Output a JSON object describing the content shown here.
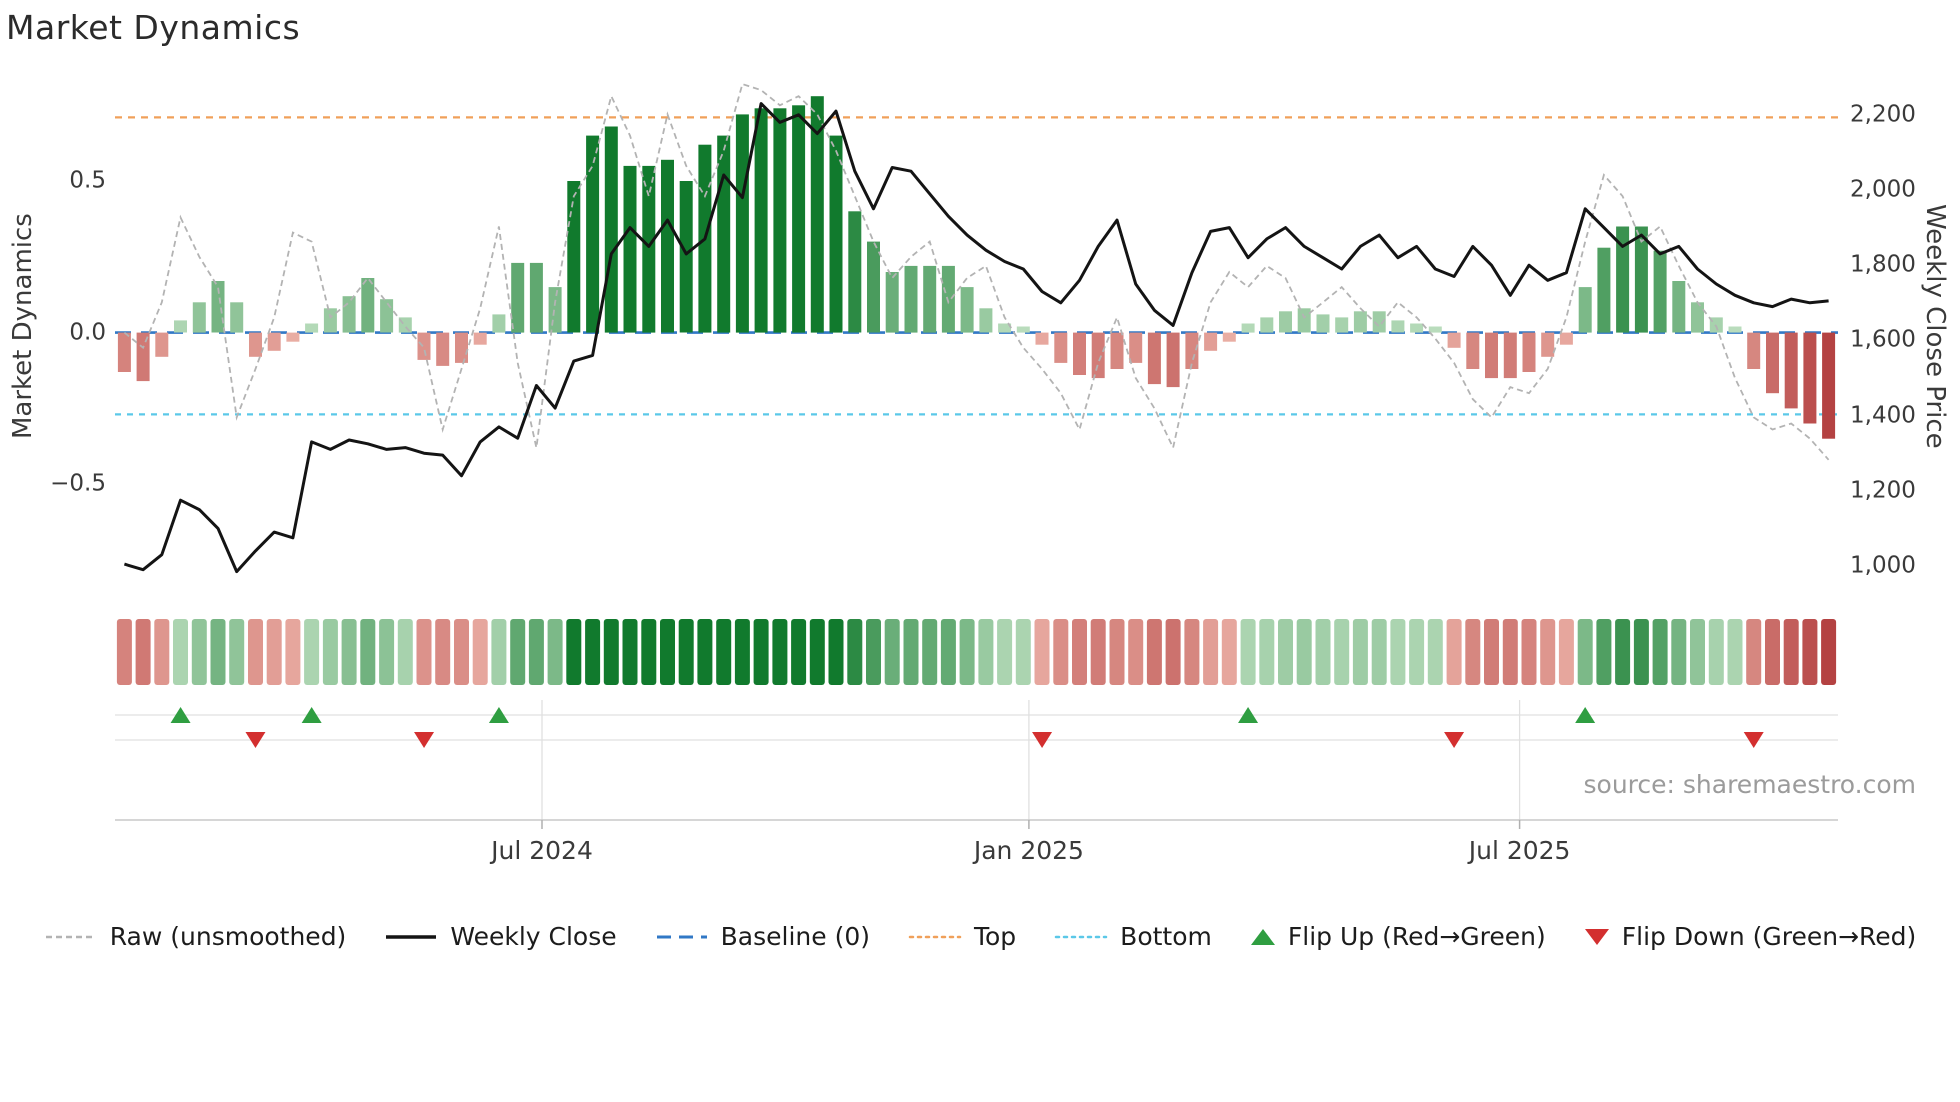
{
  "title": "Market Dynamics",
  "source_text": "source: sharemaestro.com",
  "axes": {
    "left_label": "Market Dynamics",
    "right_label": "Weekly Close Price",
    "left_ticks": [
      {
        "label": "0.5",
        "value": 0.5
      },
      {
        "label": "0.0",
        "value": 0.0
      },
      {
        "label": "−0.5",
        "value": -0.5
      }
    ],
    "right_ticks": [
      {
        "label": "2,200",
        "value": 2200
      },
      {
        "label": "2,000",
        "value": 2000
      },
      {
        "label": "1,800",
        "value": 1800
      },
      {
        "label": "1,600",
        "value": 1600
      },
      {
        "label": "1,400",
        "value": 1400
      },
      {
        "label": "1,200",
        "value": 1200
      },
      {
        "label": "1,000",
        "value": 1000
      }
    ],
    "x_ticks": [
      {
        "label": "Jul 2024",
        "index": 22.3
      },
      {
        "label": "Jan 2025",
        "index": 48.3
      },
      {
        "label": "Jul 2025",
        "index": 74.5
      }
    ]
  },
  "colors": {
    "weekly_close": "#141414",
    "raw": "#b3b3b3",
    "baseline": "#3178c6",
    "top": "#f0a05a",
    "bottom": "#5bc8e8",
    "flip_up": "#2f9e41",
    "flip_down": "#d32f2f",
    "green_pale": "#cde8cd",
    "green_dark": "#117a2d",
    "red_pale": "#f5c4b8",
    "red_dark": "#a21d21",
    "grid": "#e0e0e0",
    "spine": "#c8c8c8",
    "tick": "#b0b0b0"
  },
  "legend": {
    "items": [
      {
        "label": "Raw (unsmoothed)"
      },
      {
        "label": "Weekly Close"
      },
      {
        "label": "Baseline (0)"
      },
      {
        "label": "Top"
      },
      {
        "label": "Bottom"
      },
      {
        "label": "Flip Up (Red→Green)"
      },
      {
        "label": "Flip Down (Green→Red)"
      }
    ]
  },
  "chart_data": {
    "type": "bar",
    "title": "Market Dynamics",
    "n_points": 92,
    "frequency": "weekly",
    "left_axis": {
      "label": "Market Dynamics",
      "ylim": [
        -0.8,
        0.84
      ]
    },
    "right_axis": {
      "label": "Weekly Close Price",
      "ylim": [
        976,
        2298
      ]
    },
    "reference_lines": {
      "baseline": 0,
      "top": 0.71,
      "bottom": -0.27
    },
    "x_tick_labels": [
      "Jul 2024",
      "Jan 2025",
      "Jul 2025"
    ],
    "series": [
      {
        "name": "Oscillator (smoothed bars)",
        "kind": "bar",
        "axis": "left",
        "values": [
          -0.13,
          -0.16,
          -0.08,
          0.04,
          0.1,
          0.17,
          0.1,
          -0.08,
          -0.06,
          -0.03,
          0.03,
          0.08,
          0.12,
          0.18,
          0.11,
          0.05,
          -0.09,
          -0.11,
          -0.1,
          -0.04,
          0.06,
          0.23,
          0.23,
          0.15,
          0.5,
          0.65,
          0.68,
          0.55,
          0.55,
          0.57,
          0.5,
          0.62,
          0.65,
          0.72,
          0.74,
          0.74,
          0.75,
          0.78,
          0.65,
          0.4,
          0.3,
          0.2,
          0.22,
          0.22,
          0.22,
          0.15,
          0.08,
          0.03,
          0.02,
          -0.04,
          -0.1,
          -0.14,
          -0.15,
          -0.12,
          -0.1,
          -0.17,
          -0.18,
          -0.12,
          -0.06,
          -0.03,
          0.03,
          0.05,
          0.07,
          0.08,
          0.06,
          0.05,
          0.07,
          0.07,
          0.04,
          0.03,
          0.02,
          -0.05,
          -0.12,
          -0.15,
          -0.15,
          -0.13,
          -0.08,
          -0.04,
          0.15,
          0.28,
          0.35,
          0.35,
          0.27,
          0.17,
          0.1,
          0.05,
          0.02,
          -0.12,
          -0.2,
          -0.25,
          -0.3,
          -0.35
        ]
      },
      {
        "name": "Raw (unsmoothed)",
        "kind": "line",
        "axis": "left",
        "values": [
          0.0,
          -0.05,
          0.1,
          0.38,
          0.25,
          0.15,
          -0.28,
          -0.12,
          0.05,
          0.33,
          0.3,
          0.05,
          0.1,
          0.18,
          0.1,
          0.02,
          -0.05,
          -0.32,
          -0.12,
          0.08,
          0.35,
          -0.1,
          -0.38,
          0.1,
          0.45,
          0.55,
          0.78,
          0.65,
          0.45,
          0.72,
          0.55,
          0.45,
          0.6,
          0.82,
          0.8,
          0.75,
          0.78,
          0.72,
          0.6,
          0.45,
          0.3,
          0.18,
          0.25,
          0.3,
          0.1,
          0.18,
          0.22,
          0.05,
          -0.05,
          -0.12,
          -0.2,
          -0.32,
          -0.1,
          0.05,
          -0.15,
          -0.25,
          -0.38,
          -0.1,
          0.1,
          0.2,
          0.15,
          0.22,
          0.18,
          0.05,
          0.1,
          0.15,
          0.08,
          0.02,
          0.1,
          0.05,
          -0.02,
          -0.1,
          -0.22,
          -0.28,
          -0.18,
          -0.2,
          -0.12,
          0.05,
          0.3,
          0.52,
          0.45,
          0.3,
          0.35,
          0.22,
          0.1,
          0.02,
          -0.15,
          -0.28,
          -0.32,
          -0.3,
          -0.35,
          -0.42
        ]
      },
      {
        "name": "Weekly Close",
        "kind": "line",
        "axis": "right",
        "values": [
          1005,
          990,
          1030,
          1175,
          1150,
          1100,
          985,
          1040,
          1090,
          1075,
          1330,
          1310,
          1335,
          1325,
          1310,
          1315,
          1300,
          1295,
          1240,
          1330,
          1370,
          1340,
          1480,
          1420,
          1545,
          1560,
          1830,
          1900,
          1850,
          1920,
          1830,
          1870,
          2040,
          1980,
          2230,
          2180,
          2200,
          2150,
          2210,
          2050,
          1950,
          2060,
          2050,
          1990,
          1930,
          1880,
          1840,
          1810,
          1790,
          1730,
          1700,
          1760,
          1850,
          1920,
          1750,
          1680,
          1640,
          1780,
          1890,
          1900,
          1820,
          1870,
          1900,
          1850,
          1820,
          1790,
          1850,
          1880,
          1820,
          1850,
          1790,
          1770,
          1850,
          1800,
          1720,
          1800,
          1760,
          1780,
          1950,
          1900,
          1850,
          1880,
          1830,
          1850,
          1790,
          1750,
          1720,
          1700,
          1690,
          1710,
          1700,
          1705
        ]
      }
    ],
    "heatmap": "same values as oscillator bars, rendered as color strip",
    "flip_up_indices": [
      3,
      10,
      20,
      60,
      78
    ],
    "flip_down_indices": [
      7,
      16,
      49,
      71,
      87
    ]
  }
}
